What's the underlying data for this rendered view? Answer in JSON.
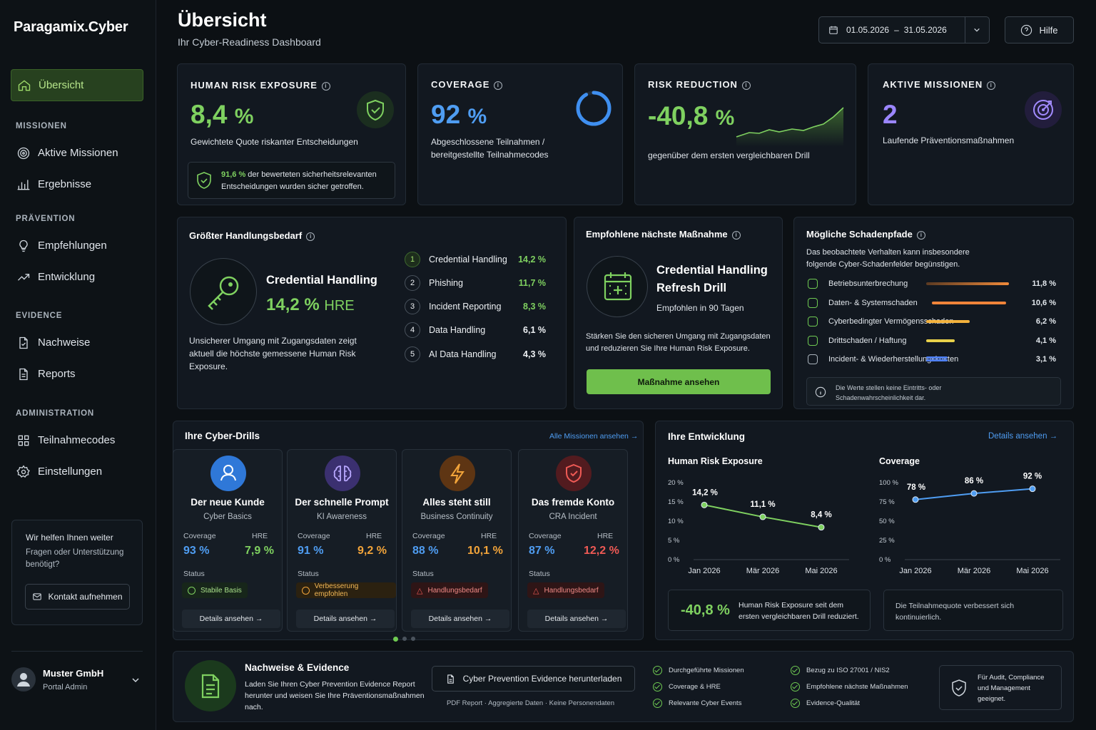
{
  "app": {
    "name": "Paragamix.Cyber"
  },
  "header": {
    "title": "Übersicht",
    "subtitle": "Ihr Cyber-Readiness Dashboard",
    "date_from": "01.05.2026",
    "date_sep": "–",
    "date_to": "31.05.2026",
    "help": "Hilfe"
  },
  "sidebar": {
    "overview": "Übersicht",
    "sections": [
      "MISSIONEN",
      "PRÄVENTION",
      "EVIDENCE",
      "ADMINISTRATION"
    ],
    "items": [
      "Aktive Missionen",
      "Ergebnisse",
      "Empfehlungen",
      "Entwicklung",
      "Nachweise",
      "Reports",
      "Teilnahmecodes",
      "Einstellungen"
    ],
    "help_box": {
      "title": "Wir helfen Ihnen weiter",
      "text": "Fragen oder Unterstützung benötigt?",
      "button": "Kontakt aufnehmen"
    },
    "user": {
      "name": "Muster GmbH",
      "role": "Portal Admin"
    }
  },
  "kpis": {
    "hre": {
      "title": "HUMAN RISK EXPOSURE",
      "value": "8,4",
      "unit": "%",
      "desc": "Gewichtete Quote riskanter Entscheidungen",
      "note_value": "91,6 %",
      "note_text1": " der bewerteten sicherheitsrelevanten",
      "note_text2": "Entscheidungen wurden sicher getroffen."
    },
    "coverage": {
      "title": "COVERAGE",
      "value": "92",
      "unit": "%",
      "progress": 0.92,
      "desc1": "Abgeschlossene Teilnahmen /",
      "desc2": "bereitgestellte Teilnahmecodes"
    },
    "risk": {
      "title": "RISK REDUCTION",
      "value": "-40,8",
      "unit": "%",
      "desc": "gegenüber dem ersten vergleichbaren Drill"
    },
    "missions": {
      "title": "AKTIVE MISSIONEN",
      "value": "2",
      "desc": "Laufende Präventionsmaßnahmen"
    }
  },
  "need": {
    "title": "Größter Handlungsbedarf",
    "topic": "Credential Handling",
    "value": "14,2 %",
    "unit": "HRE",
    "desc1": "Unsicherer Umgang mit Zugangsdaten zeigt",
    "desc2": "aktuell die höchste gemessene Human Risk",
    "desc3": "Exposure.",
    "ranking": [
      {
        "n": "1",
        "name": "Credential Handling",
        "value": "14,2 %"
      },
      {
        "n": "2",
        "name": "Phishing",
        "value": "11,7 %"
      },
      {
        "n": "3",
        "name": "Incident Reporting",
        "value": "8,3 %"
      },
      {
        "n": "4",
        "name": "Data Handling",
        "value": "6,1 %"
      },
      {
        "n": "5",
        "name": "AI Data Handling",
        "value": "4,3 %"
      }
    ]
  },
  "next": {
    "title": "Empfohlene nächste Maßnahme",
    "name1": "Credential Handling",
    "name2": "Refresh Drill",
    "when": "Empfohlen in 90 Tagen",
    "desc1": "Stärken Sie den sicheren Umgang mit Zugangsdaten",
    "desc2": "und reduzieren Sie Ihre Human Risk Exposure.",
    "button": "Maßnahme ansehen"
  },
  "damage": {
    "title": "Mögliche Schadenpfade",
    "desc1": "Das beobachtete Verhalten kann insbesondere",
    "desc2": "folgende Cyber-Schadenfelder begünstigen.",
    "items": [
      {
        "name": "Betriebsunterbrechung",
        "value": "11,8 %",
        "color": "#f08a3a"
      },
      {
        "name": "Daten- & Systemschaden",
        "value": "10,6 %",
        "color": "#f0843a"
      },
      {
        "name": "Cyberbedingter Vermögensschaden",
        "value": "6,2 %",
        "color": "#f2b13c"
      },
      {
        "name": "Drittschaden / Haftung",
        "value": "4,1 %",
        "color": "#e8d04a"
      },
      {
        "name": "Incident- & Wiederherstellungskosten",
        "value": "3,1 %",
        "color": "#4f7ff0"
      }
    ],
    "note1": "Die Werte stellen keine Eintritts- oder",
    "note2": "Schadenwahrscheinlichkeit dar."
  },
  "drills": {
    "title": "Ihre Cyber-Drills",
    "link": "Alle Missionen ansehen →",
    "coverage_label": "Coverage",
    "hre_label": "HRE",
    "status_label": "Status",
    "details": "Details ansehen →",
    "items": [
      {
        "title": "Der neue Kunde",
        "sub": "Cyber Basics",
        "coverage": "93 %",
        "hre": "7,9 %",
        "status": "Stabile Basis",
        "level": "green",
        "color": "#2f78d8",
        "icon": "user-icon"
      },
      {
        "title": "Der schnelle Prompt",
        "sub": "KI Awareness",
        "coverage": "91 %",
        "hre": "9,2 %",
        "status": "Verbesserung empfohlen",
        "level": "orange",
        "color": "#4a3a8a",
        "icon": "brain-icon"
      },
      {
        "title": "Alles steht still",
        "sub": "Business Continuity",
        "coverage": "88 %",
        "hre": "10,1 %",
        "status": "Handlungsbedarf",
        "level": "red",
        "color": "#6e3a14",
        "icon": "lightning-icon"
      },
      {
        "title": "Das fremde Konto",
        "sub": "CRA Incident",
        "coverage": "87 %",
        "hre": "12,2 %",
        "status": "Handlungsbedarf",
        "level": "red",
        "color": "#5a1e22",
        "icon": "shield-alert-icon"
      }
    ]
  },
  "trend": {
    "title": "Ihre Entwicklung",
    "link": "Details ansehen →",
    "hre_box_value": "-40,8 %",
    "hre_box_text1": "Human Risk Exposure seit dem",
    "hre_box_text2": "ersten vergleichbaren Drill reduziert.",
    "cov_box_text1": "Die Teilnahmequote verbessert sich",
    "cov_box_text2": "kontinuierlich."
  },
  "chart_data": [
    {
      "type": "line",
      "title": "Human Risk Exposure",
      "x": [
        "Jan 2026",
        "Mär 2026",
        "Mai 2026"
      ],
      "y_ticks": [
        "20 %",
        "15 %",
        "10 %",
        "5 %",
        "0 %"
      ],
      "ylim": [
        0,
        20
      ],
      "values": [
        14.2,
        11.1,
        8.4
      ],
      "labels": [
        "14,2 %",
        "11,1 %",
        "8,4 %"
      ],
      "color": "#7fd160"
    },
    {
      "type": "line",
      "title": "Coverage",
      "x": [
        "Jan 2026",
        "Mär 2026",
        "Mai 2026"
      ],
      "y_ticks": [
        "100 %",
        "75 %",
        "50 %",
        "25 %",
        "0 %"
      ],
      "ylim": [
        0,
        100
      ],
      "values": [
        78,
        86,
        92
      ],
      "labels": [
        "78 %",
        "86 %",
        "92 %"
      ],
      "color": "#4f9df2"
    }
  ],
  "evidence": {
    "title": "Nachweise & Evidence",
    "desc1": "Laden Sie Ihren Cyber Prevention Evidence Report",
    "desc2": "herunter und weisen Sie Ihre Präventionsmaßnahmen",
    "desc3": "nach.",
    "download": "Cyber Prevention Evidence herunterladen",
    "formats": "PDF Report · Aggregierte Daten · Keine Personendaten",
    "checks": [
      "Durchgeführte Missionen",
      "Coverage & HRE",
      "Relevante Cyber Events",
      "Bezug zu ISO 27001 / NIS2",
      "Empfohlene nächste Maßnahmen",
      "Evidence-Qualität"
    ],
    "audit1": "Für Audit, Compliance",
    "audit2": "und Management",
    "audit3": "geeignet."
  }
}
